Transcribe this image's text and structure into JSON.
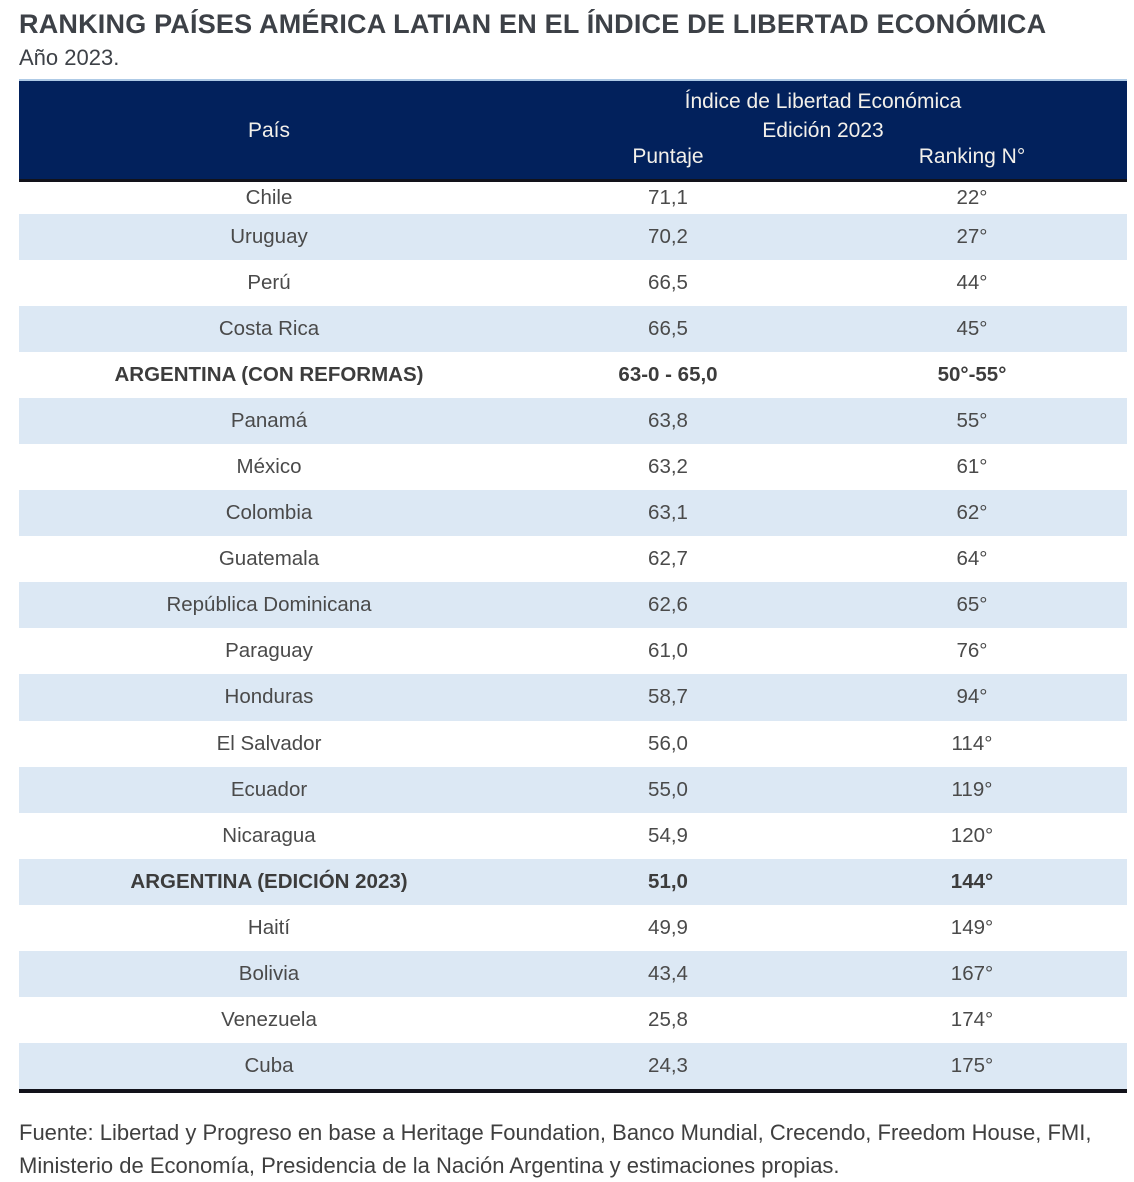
{
  "page": {
    "title": "RANKING PAÍSES AMÉRICA LATIAN EN EL ÍNDICE DE LIBERTAD ECONÓMICA",
    "subtitle": "Año 2023."
  },
  "colors": {
    "header_bg": "#02215c",
    "stripe_bg": "#dce8f4",
    "dark_rule": "#12121a",
    "top_rule": "#aecae6",
    "header_text": "#f3f0ea",
    "body_text": "#4a4a4a"
  },
  "table": {
    "header": {
      "col1": "País",
      "group_line1": "Índice de Libertad Económica",
      "group_line2": "Edición 2023",
      "col2": "Puntaje",
      "col3": "Ranking N°"
    },
    "rows": [
      {
        "country": "Chile",
        "score": "71,1",
        "rank": "22°",
        "highlight": false
      },
      {
        "country": "Uruguay",
        "score": "70,2",
        "rank": "27°",
        "highlight": false
      },
      {
        "country": "Perú",
        "score": "66,5",
        "rank": "44°",
        "highlight": false
      },
      {
        "country": "Costa Rica",
        "score": "66,5",
        "rank": "45°",
        "highlight": false
      },
      {
        "country": "ARGENTINA (CON REFORMAS)",
        "score": "63-0 - 65,0",
        "rank": "50°-55°",
        "highlight": true
      },
      {
        "country": "Panamá",
        "score": "63,8",
        "rank": "55°",
        "highlight": false
      },
      {
        "country": "México",
        "score": "63,2",
        "rank": "61°",
        "highlight": false
      },
      {
        "country": "Colombia",
        "score": "63,1",
        "rank": "62°",
        "highlight": false
      },
      {
        "country": "Guatemala",
        "score": "62,7",
        "rank": "64°",
        "highlight": false
      },
      {
        "country": "República Dominicana",
        "score": "62,6",
        "rank": "65°",
        "highlight": false
      },
      {
        "country": "Paraguay",
        "score": "61,0",
        "rank": "76°",
        "highlight": false
      },
      {
        "country": "Honduras",
        "score": "58,7",
        "rank": "94°",
        "highlight": false
      },
      {
        "country": "El Salvador",
        "score": "56,0",
        "rank": "114°",
        "highlight": false
      },
      {
        "country": "Ecuador",
        "score": "55,0",
        "rank": "119°",
        "highlight": false
      },
      {
        "country": "Nicaragua",
        "score": "54,9",
        "rank": "120°",
        "highlight": false
      },
      {
        "country": "ARGENTINA (EDICIÓN 2023)",
        "score": "51,0",
        "rank": "144°",
        "highlight": true
      },
      {
        "country": "Haití",
        "score": "49,9",
        "rank": "149°",
        "highlight": false
      },
      {
        "country": "Bolivia",
        "score": "43,4",
        "rank": "167°",
        "highlight": false
      },
      {
        "country": "Venezuela",
        "score": "25,8",
        "rank": "174°",
        "highlight": false
      },
      {
        "country": "Cuba",
        "score": "24,3",
        "rank": "175°",
        "highlight": false
      }
    ]
  },
  "footer": {
    "line1": "Fuente: Libertad y Progreso en base a Heritage Foundation, Banco Mundial, Crecendo, Freedom House, FMI,",
    "line2": "Ministerio de Economía, Presidencia de la Nación Argentina y estimaciones propias."
  },
  "chart_data": {
    "type": "table",
    "title": "RANKING PAÍSES AMÉRICA LATIAN EN EL ÍNDICE DE LIBERTAD ECONÓMICA",
    "subtitle": "Año 2023.",
    "column_group": "Índice de Libertad Económica Edición 2023",
    "columns": [
      "País",
      "Puntaje",
      "Ranking N°"
    ],
    "rows": [
      [
        "Chile",
        "71,1",
        "22°"
      ],
      [
        "Uruguay",
        "70,2",
        "27°"
      ],
      [
        "Perú",
        "66,5",
        "44°"
      ],
      [
        "Costa Rica",
        "66,5",
        "45°"
      ],
      [
        "ARGENTINA (CON REFORMAS)",
        "63-0 - 65,0",
        "50°-55°"
      ],
      [
        "Panamá",
        "63,8",
        "55°"
      ],
      [
        "México",
        "63,2",
        "61°"
      ],
      [
        "Colombia",
        "63,1",
        "62°"
      ],
      [
        "Guatemala",
        "62,7",
        "64°"
      ],
      [
        "República Dominicana",
        "62,6",
        "65°"
      ],
      [
        "Paraguay",
        "61,0",
        "76°"
      ],
      [
        "Honduras",
        "58,7",
        "94°"
      ],
      [
        "El Salvador",
        "56,0",
        "114°"
      ],
      [
        "Ecuador",
        "55,0",
        "119°"
      ],
      [
        "Nicaragua",
        "54,9",
        "120°"
      ],
      [
        "ARGENTINA (EDICIÓN 2023)",
        "51,0",
        "144°"
      ],
      [
        "Haití",
        "49,9",
        "149°"
      ],
      [
        "Bolivia",
        "43,4",
        "167°"
      ],
      [
        "Venezuela",
        "25,8",
        "174°"
      ],
      [
        "Cuba",
        "24,3",
        "175°"
      ]
    ],
    "highlighted_rows": [
      "ARGENTINA (CON REFORMAS)",
      "ARGENTINA (EDICIÓN 2023)"
    ],
    "source": "Fuente: Libertad y Progreso en base a Heritage Foundation, Banco Mundial, Crecendo, Freedom House, FMI, Ministerio de Economía, Presidencia de la Nación Argentina y estimaciones propias."
  }
}
